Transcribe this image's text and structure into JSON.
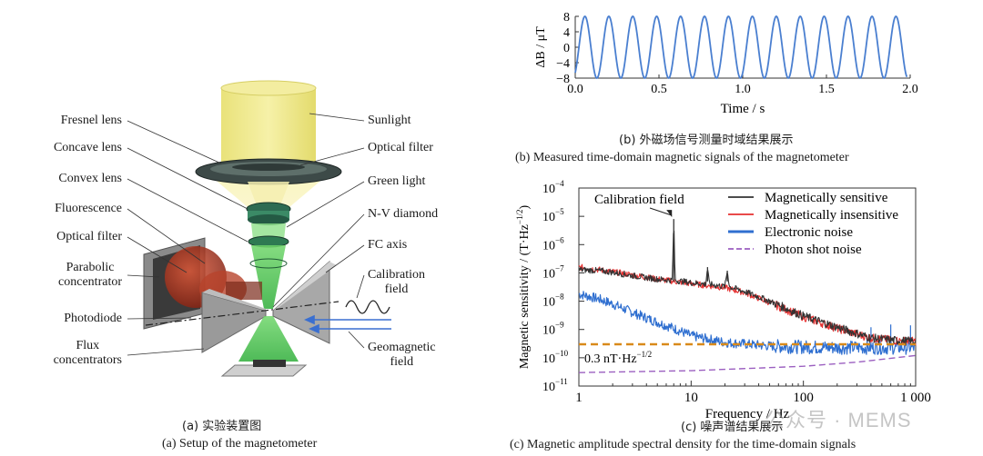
{
  "panel_a": {
    "left_labels": [
      "Fresnel lens",
      "Concave lens",
      "Convex lens",
      "Fluorescence",
      "Optical filter",
      "Parabolic\nconcentrator",
      "Photodiode",
      "Flux\nconcentrators"
    ],
    "right_labels": [
      "Sunlight",
      "Optical filter",
      "Green light",
      "N-V diamond",
      "FC axis",
      "Calibration\nfield",
      "Geomagnetic\nfield"
    ],
    "caption_cn": "(a) 实验装置图",
    "caption_en": "(a) Setup of the magnetometer"
  },
  "panel_b": {
    "caption_cn": "(b) 外磁场信号测量时域结果展示",
    "caption_en": "(b) Measured time-domain magnetic signals of the magnetometer"
  },
  "panel_c": {
    "caption_cn": "(c) 噪声谱结果展示",
    "caption_en": "(c) Magnetic amplitude spectral density for the time-domain signals",
    "annotation_calibration": "Calibration field",
    "annotation_level": "0.3 nT·Hz",
    "annotation_level_exp": "−1/2"
  },
  "watermark": "公众号 · MEMS",
  "colors": {
    "sine": "#4a7fd0",
    "sensitive": "#333333",
    "insensitive": "#e63030",
    "electronic": "#2f6fd0",
    "photon": "#9b5fc0",
    "threshold": "#d98a1a"
  },
  "chart_data": [
    {
      "type": "line",
      "xlabel": "Time / s",
      "ylabel": "ΔB / μT",
      "xlim": [
        0.0,
        2.0
      ],
      "ylim": [
        -8,
        8
      ],
      "xticks": [
        "0.0",
        "0.5",
        "1.0",
        "1.5",
        "2.0"
      ],
      "yticks": [
        "8",
        "4",
        "0",
        "−4",
        "−8"
      ],
      "grid": false,
      "series": [
        {
          "amplitude": 8,
          "frequency_hz": 7,
          "x_start": 0.0,
          "x_end": 1.98
        }
      ]
    },
    {
      "type": "line",
      "xscale": "log",
      "yscale": "log",
      "xlabel": "Frequency / Hz",
      "ylabel": "Magnetic sensitivity / (T·Hz",
      "ylabel_exp": "−1/2",
      "xlim": [
        1,
        1000
      ],
      "ylim": [
        1e-11,
        0.0001
      ],
      "xticks": [
        "1",
        "10",
        "100",
        "1 000"
      ],
      "yticks": [
        {
          "base": "10",
          "exp": "−4"
        },
        {
          "base": "10",
          "exp": "−5"
        },
        {
          "base": "10",
          "exp": "−6"
        },
        {
          "base": "10",
          "exp": "−7"
        },
        {
          "base": "10",
          "exp": "−8"
        },
        {
          "base": "10",
          "exp": "−9"
        },
        {
          "base": "10",
          "exp": "−10"
        },
        {
          "base": "10",
          "exp": "−11"
        }
      ],
      "legend_position": "top-right",
      "series": [
        {
          "name": "Magnetically sensitive",
          "x": [
            1,
            1.5,
            2,
            3,
            5,
            6.8,
            7,
            7.2,
            10,
            13.5,
            14,
            14.5,
            20,
            21,
            22,
            30,
            50,
            100,
            200,
            400,
            700,
            1000
          ],
          "y": [
            1.3e-07,
            1.2e-07,
            1.05e-07,
            8e-08,
            6e-08,
            5.5e-08,
            8e-06,
            5.5e-08,
            4.5e-08,
            4e-08,
            1.6e-07,
            4e-08,
            3.3e-08,
            1.2e-07,
            3.2e-08,
            2.2e-08,
            1e-08,
            3e-09,
            1.2e-09,
            5e-10,
            4e-10,
            3.8e-10
          ]
        },
        {
          "name": "Magnetically insensitive",
          "x": [
            1,
            1.5,
            2,
            3,
            5,
            10,
            20,
            30,
            50,
            100,
            200,
            400,
            700,
            1000
          ],
          "y": [
            1.6e-07,
            1.3e-07,
            1.1e-07,
            8.5e-08,
            6e-08,
            4.2e-08,
            3e-08,
            2e-08,
            9e-09,
            2.8e-09,
            1.1e-09,
            5e-10,
            4e-10,
            3.8e-10
          ]
        },
        {
          "name": "Electronic noise",
          "x": [
            1,
            1.5,
            2,
            3,
            5,
            7,
            10,
            20,
            50,
            100,
            200,
            500,
            1000
          ],
          "y": [
            1.8e-08,
            1.2e-08,
            8e-09,
            4e-09,
            1.8e-09,
            1.1e-09,
            6e-10,
            3.5e-10,
            2.6e-10,
            2.4e-10,
            2.3e-10,
            2.3e-10,
            2.3e-10
          ]
        },
        {
          "name": "Photon shot noise",
          "x": [
            1,
            10,
            100,
            300,
            1000
          ],
          "y": [
            3e-11,
            3.5e-11,
            5e-11,
            7e-11,
            1.2e-10
          ]
        }
      ],
      "reference_line": {
        "y": 3e-10,
        "label": "0.3 nT·Hz"
      }
    }
  ]
}
